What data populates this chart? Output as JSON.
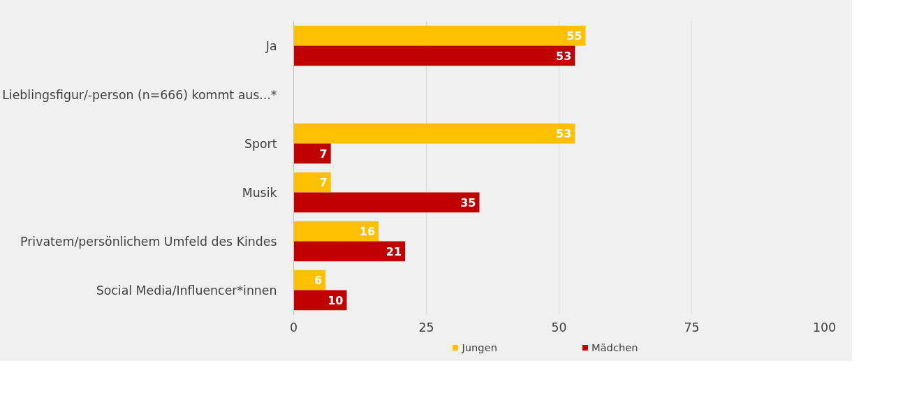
{
  "chart_data": {
    "type": "bar",
    "orientation": "horizontal",
    "categories": [
      "Ja",
      "Lieblingsfigur/-person (n=666) kommt aus...*",
      "Sport",
      "Musik",
      "Privatem/persönlichem Umfeld des Kindes",
      "Social Media/Influencer*innen"
    ],
    "series": [
      {
        "name": "Jungen",
        "color": "#ffc000",
        "values": [
          55,
          null,
          53,
          7,
          16,
          6
        ]
      },
      {
        "name": "Mädchen",
        "color": "#c00000",
        "values": [
          53,
          null,
          7,
          35,
          21,
          10
        ]
      }
    ],
    "xlim": [
      0,
      100
    ],
    "xticks": [
      0,
      25,
      50,
      75,
      100
    ],
    "grid": "x",
    "legend": "bottom",
    "data_labels": true
  }
}
